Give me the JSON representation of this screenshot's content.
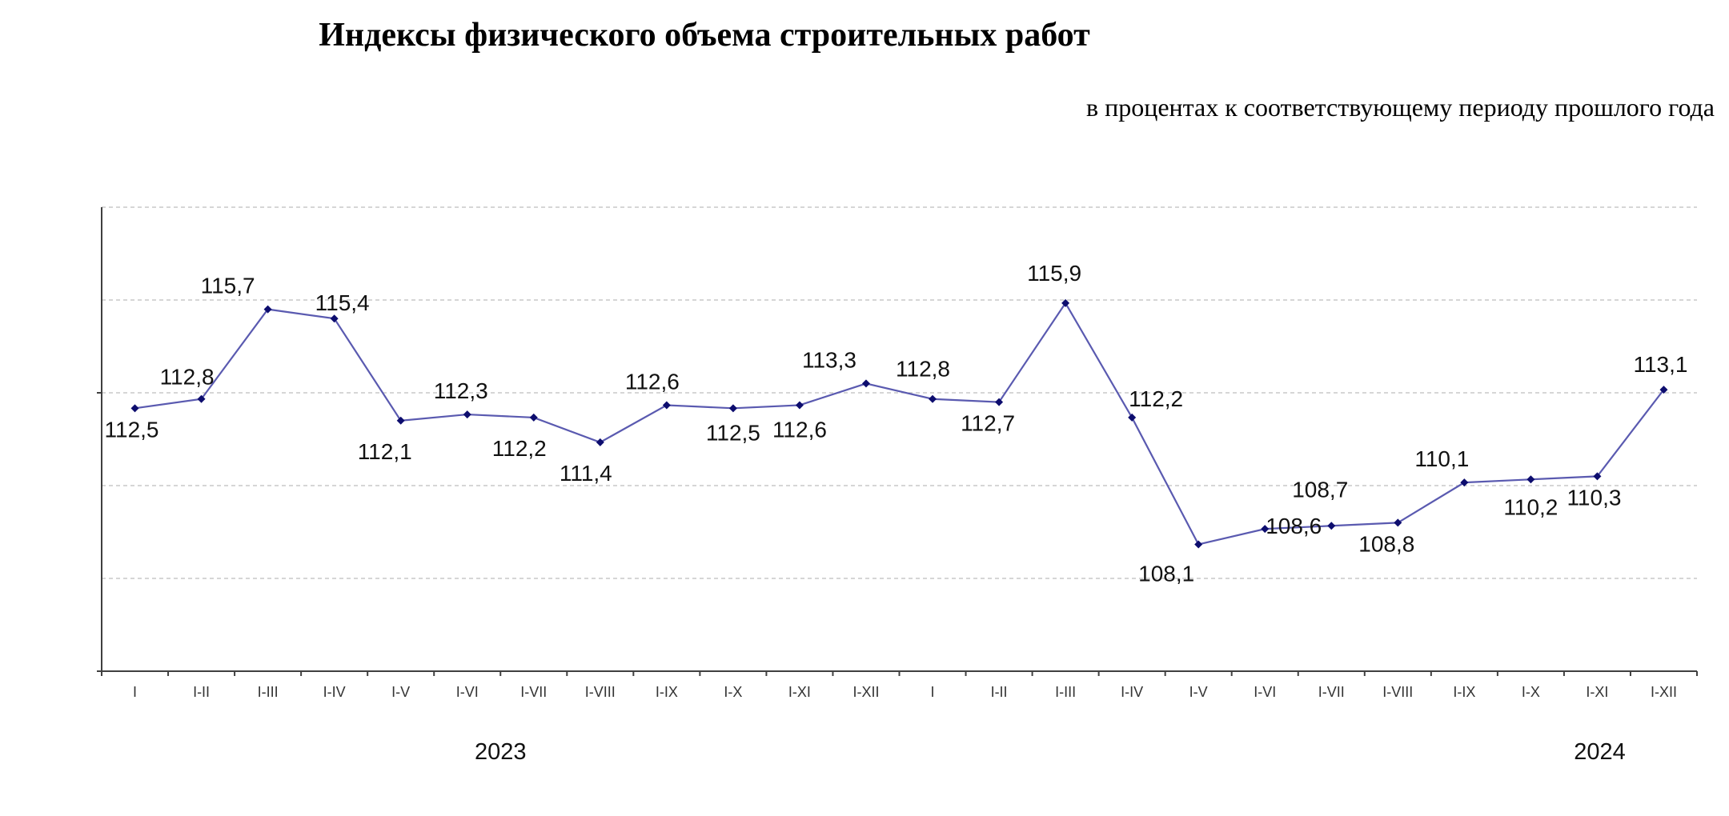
{
  "chart_data": {
    "type": "line",
    "title": "Индексы физического объема строительных работ",
    "subtitle": "в процентах к соответствующему периоду прошлого года",
    "ylim": [
      104,
      119
    ],
    "grid": true,
    "categories": [
      "I",
      "I-II",
      "I-III",
      "I-IV",
      "I-V",
      "I-VI",
      "I-VII",
      "I-VIII",
      "I-IX",
      "I-X",
      "I-XI",
      "I-XII",
      "I",
      "I-II",
      "I-III",
      "I-IV",
      "I-V",
      "I-VI",
      "I-VII",
      "I-VIII",
      "I-IX",
      "I-X",
      "I-XI",
      "I-XII"
    ],
    "groups": [
      {
        "label": "2023",
        "from": 0,
        "to": 11
      },
      {
        "label": "2024",
        "from": 12,
        "to": 23
      }
    ],
    "series": [
      {
        "values": [
          112.5,
          112.8,
          115.7,
          115.4,
          112.1,
          112.3,
          112.2,
          111.4,
          112.6,
          112.5,
          112.6,
          113.3,
          112.8,
          112.7,
          115.9,
          112.2,
          108.1,
          108.6,
          108.7,
          108.8,
          110.1,
          110.2,
          110.3,
          113.1
        ],
        "labels": [
          "112,5",
          "112,8",
          "115,7",
          "115,4",
          "112,1",
          "112,3",
          "112,2",
          "111,4",
          "112,6",
          "112,5",
          "112,6",
          "113,3",
          "112,8",
          "112,7",
          "115,9",
          "112,2",
          "108,1",
          "108,6",
          "108,7",
          "108,8",
          "110,1",
          "110,2",
          "110,3",
          "113,1"
        ]
      }
    ]
  }
}
